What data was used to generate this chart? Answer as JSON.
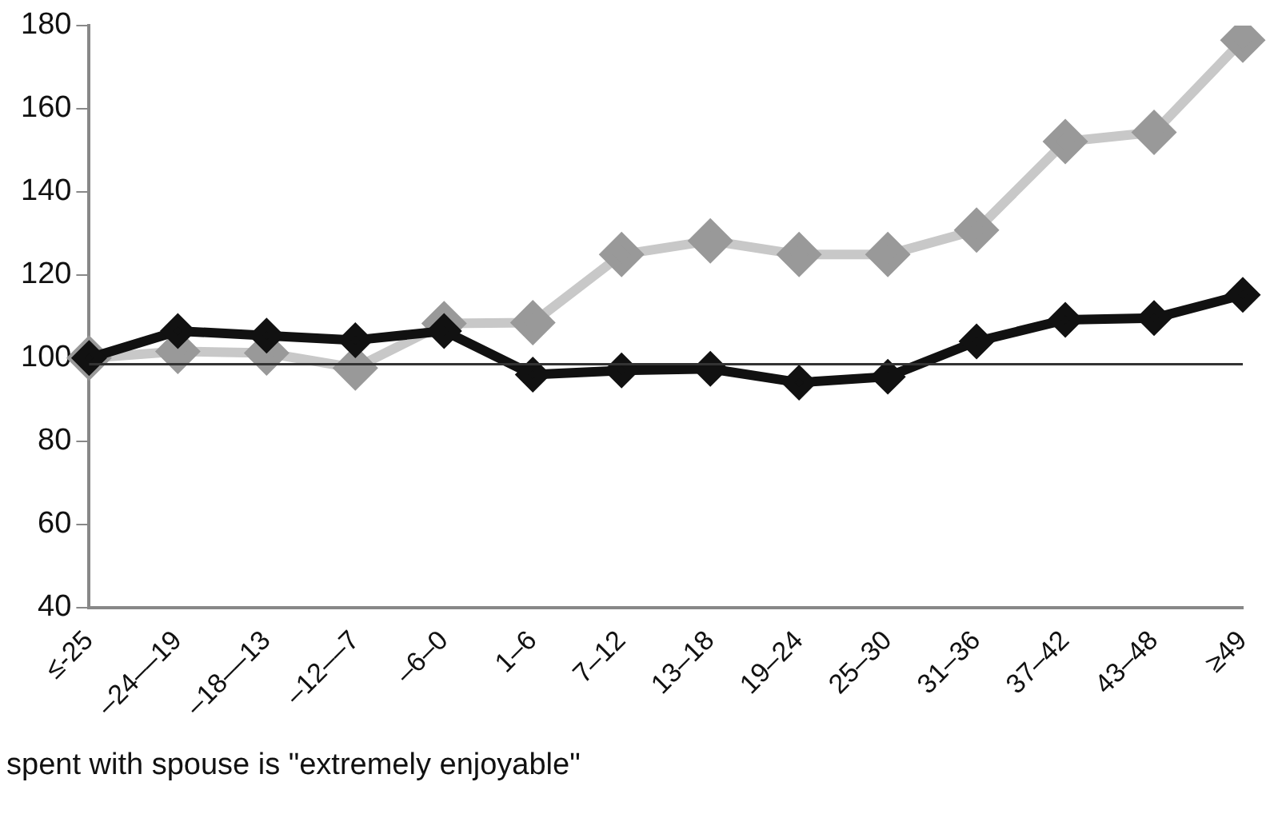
{
  "chart_data": {
    "type": "line",
    "categories": [
      "≤-25",
      "–24––19",
      "–18––13",
      "–12––7",
      "–6–0",
      "1–6",
      "7–12",
      "13–18",
      "19–24",
      "25–30",
      "31–36",
      "37–42",
      "43–48",
      "≥49"
    ],
    "series": [
      {
        "color": "#c8c8c8",
        "values": [
          100,
          101.6,
          101.2,
          97.6,
          108.3,
          108.5,
          124.9,
          128.2,
          124.9,
          124.9,
          130.8,
          152.1,
          154.3,
          176.5
        ]
      },
      {
        "color": "#111111",
        "values": [
          100,
          106.5,
          105.4,
          104.3,
          106.5,
          96,
          97,
          97.4,
          94.1,
          95.5,
          104,
          109.2,
          109.6,
          115.2
        ]
      }
    ],
    "ylim": [
      40,
      180
    ],
    "yticks": [
      40,
      60,
      80,
      100,
      120,
      140,
      160,
      180
    ],
    "grid": false,
    "legend": false,
    "marker": "diamond",
    "line_style": "solid",
    "ref_lines": [
      {
        "axis": "y",
        "value": 98.5,
        "color": "#333333"
      }
    ],
    "annotations": [
      "spent with spouse is \"extremely enjoyable\""
    ]
  }
}
